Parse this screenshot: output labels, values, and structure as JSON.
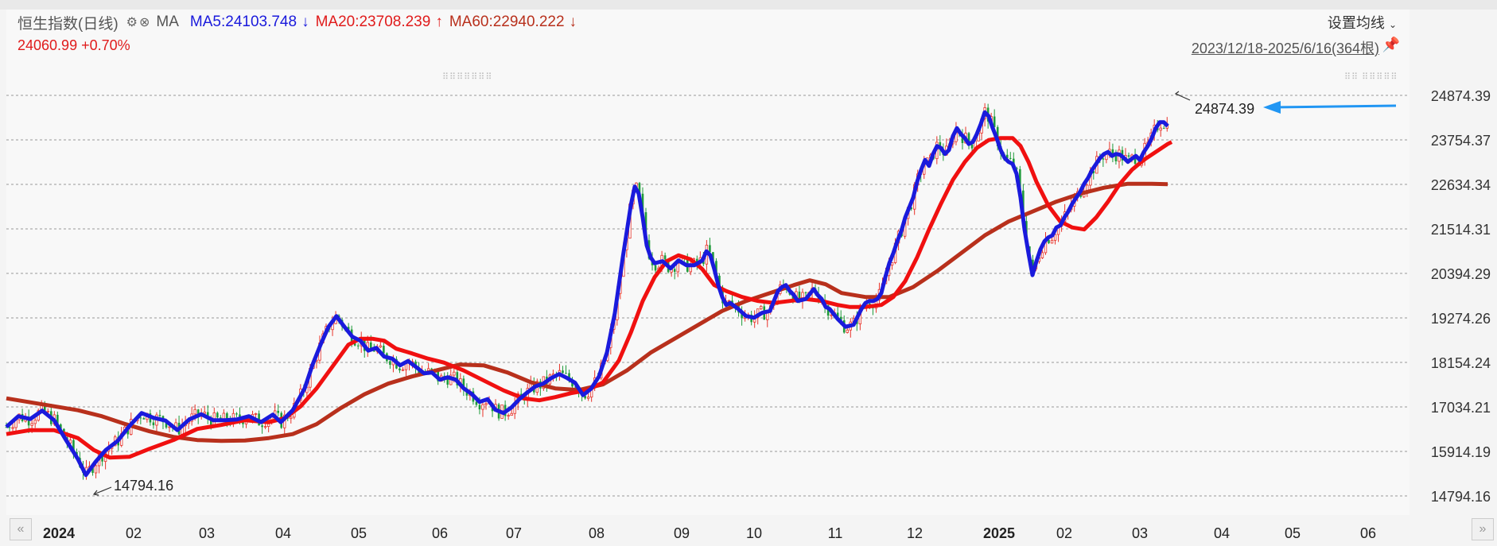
{
  "header": {
    "index_name": "恒生指数(日线)",
    "settings_icon": "gear-icon",
    "close_icon": "close-circle-icon",
    "indicator": "MA",
    "ma5": "MA5:24103.748",
    "ma5_arrow": "↓",
    "ma20": "MA20:23708.239",
    "ma20_arrow": "↑",
    "ma60": "MA60:22940.222",
    "ma60_arrow": "↓",
    "price_change": "24060.99 +0.70%",
    "set_ma_label": "设置均线",
    "date_range": "2023/12/18-2025/6/16(364根)",
    "pin_icon": "pin-icon"
  },
  "colors": {
    "ma5": "#1a1adc",
    "ma20": "#f01010",
    "ma60": "#b8301c",
    "up": "#e8332a",
    "down": "#1e9a3a",
    "arrow": "#2196f3"
  },
  "chart_data": {
    "type": "candlestick",
    "y_ticks": [
      "24874.39",
      "23754.37",
      "22634.34",
      "21514.31",
      "20394.29",
      "19274.26",
      "18154.24",
      "17034.21",
      "15914.19",
      "14794.16"
    ],
    "x_labels": [
      "2024",
      "02",
      "03",
      "04",
      "05",
      "06",
      "07",
      "08",
      "09",
      "10",
      "11",
      "12",
      "2025",
      "02",
      "03",
      "04",
      "05",
      "06"
    ],
    "ylim": [
      14794.16,
      24874.39
    ],
    "annotations": [
      {
        "label": "24874.39",
        "type": "max"
      },
      {
        "label": "14794.16",
        "type": "min"
      }
    ],
    "ma5": [
      [
        0,
        16530
      ],
      [
        15,
        16800
      ],
      [
        30,
        16730
      ],
      [
        45,
        16940
      ],
      [
        60,
        16700
      ],
      [
        75,
        16200
      ],
      [
        90,
        15720
      ],
      [
        100,
        15320
      ],
      [
        112,
        15650
      ],
      [
        125,
        15950
      ],
      [
        140,
        16180
      ],
      [
        155,
        16560
      ],
      [
        170,
        16880
      ],
      [
        185,
        16760
      ],
      [
        200,
        16690
      ],
      [
        215,
        16450
      ],
      [
        230,
        16720
      ],
      [
        245,
        16850
      ],
      [
        260,
        16700
      ],
      [
        275,
        16700
      ],
      [
        290,
        16720
      ],
      [
        305,
        16800
      ],
      [
        320,
        16650
      ],
      [
        335,
        16840
      ],
      [
        345,
        16650
      ],
      [
        360,
        16950
      ],
      [
        375,
        17500
      ],
      [
        385,
        18100
      ],
      [
        395,
        18600
      ],
      [
        405,
        19050
      ],
      [
        415,
        19320
      ],
      [
        425,
        19050
      ],
      [
        435,
        18800
      ],
      [
        445,
        18700
      ],
      [
        455,
        18450
      ],
      [
        465,
        18520
      ],
      [
        475,
        18300
      ],
      [
        485,
        18250
      ],
      [
        495,
        18080
      ],
      [
        505,
        18190
      ],
      [
        515,
        18040
      ],
      [
        525,
        17880
      ],
      [
        535,
        17900
      ],
      [
        545,
        17720
      ],
      [
        555,
        17780
      ],
      [
        565,
        17720
      ],
      [
        575,
        17500
      ],
      [
        585,
        17360
      ],
      [
        595,
        17160
      ],
      [
        605,
        17230
      ],
      [
        615,
        16960
      ],
      [
        625,
        16880
      ],
      [
        635,
        17020
      ],
      [
        645,
        17230
      ],
      [
        655,
        17400
      ],
      [
        665,
        17550
      ],
      [
        675,
        17620
      ],
      [
        685,
        17760
      ],
      [
        695,
        17860
      ],
      [
        705,
        17760
      ],
      [
        715,
        17640
      ],
      [
        725,
        17330
      ],
      [
        735,
        17490
      ],
      [
        745,
        17800
      ],
      [
        755,
        18400
      ],
      [
        765,
        19400
      ],
      [
        775,
        20800
      ],
      [
        785,
        22100
      ],
      [
        790,
        22580
      ],
      [
        795,
        22400
      ],
      [
        800,
        21800
      ],
      [
        805,
        21100
      ],
      [
        810,
        20800
      ],
      [
        815,
        20650
      ],
      [
        825,
        20700
      ],
      [
        835,
        20520
      ],
      [
        845,
        20720
      ],
      [
        855,
        20600
      ],
      [
        865,
        20600
      ],
      [
        875,
        20720
      ],
      [
        880,
        20950
      ],
      [
        885,
        20850
      ],
      [
        890,
        20500
      ],
      [
        895,
        20100
      ],
      [
        900,
        19800
      ],
      [
        905,
        19600
      ],
      [
        910,
        19650
      ],
      [
        920,
        19500
      ],
      [
        930,
        19320
      ],
      [
        940,
        19280
      ],
      [
        950,
        19400
      ],
      [
        960,
        19450
      ],
      [
        965,
        19700
      ],
      [
        970,
        19950
      ],
      [
        975,
        20050
      ],
      [
        980,
        20100
      ],
      [
        985,
        19950
      ],
      [
        990,
        19850
      ],
      [
        995,
        19700
      ],
      [
        1005,
        19750
      ],
      [
        1015,
        20000
      ],
      [
        1020,
        19850
      ],
      [
        1025,
        19750
      ],
      [
        1030,
        19550
      ],
      [
        1035,
        19500
      ],
      [
        1045,
        19250
      ],
      [
        1055,
        19050
      ],
      [
        1065,
        19100
      ],
      [
        1070,
        19300
      ],
      [
        1075,
        19500
      ],
      [
        1080,
        19650
      ],
      [
        1085,
        19700
      ],
      [
        1090,
        19700
      ],
      [
        1095,
        19750
      ],
      [
        1100,
        19900
      ],
      [
        1105,
        20300
      ],
      [
        1110,
        20650
      ],
      [
        1115,
        20900
      ],
      [
        1120,
        21200
      ],
      [
        1125,
        21450
      ],
      [
        1130,
        21800
      ],
      [
        1135,
        22050
      ],
      [
        1140,
        22300
      ],
      [
        1145,
        22700
      ],
      [
        1150,
        23000
      ],
      [
        1155,
        23250
      ],
      [
        1160,
        23100
      ],
      [
        1165,
        23400
      ],
      [
        1170,
        23600
      ],
      [
        1175,
        23550
      ],
      [
        1180,
        23400
      ],
      [
        1185,
        23500
      ],
      [
        1190,
        23850
      ],
      [
        1195,
        24050
      ],
      [
        1200,
        23900
      ],
      [
        1205,
        23800
      ],
      [
        1210,
        23650
      ],
      [
        1215,
        23700
      ],
      [
        1220,
        23900
      ],
      [
        1225,
        24150
      ],
      [
        1230,
        24450
      ],
      [
        1235,
        24350
      ],
      [
        1240,
        24050
      ],
      [
        1245,
        23800
      ],
      [
        1250,
        23500
      ],
      [
        1255,
        23300
      ],
      [
        1260,
        23200
      ],
      [
        1265,
        23150
      ],
      [
        1270,
        22900
      ],
      [
        1275,
        22300
      ],
      [
        1280,
        21500
      ],
      [
        1285,
        20900
      ],
      [
        1290,
        20350
      ],
      [
        1295,
        20700
      ],
      [
        1300,
        21000
      ],
      [
        1305,
        21200
      ],
      [
        1310,
        21300
      ],
      [
        1315,
        21350
      ],
      [
        1320,
        21550
      ],
      [
        1325,
        21600
      ],
      [
        1330,
        21800
      ],
      [
        1335,
        21950
      ],
      [
        1340,
        22150
      ],
      [
        1345,
        22300
      ],
      [
        1350,
        22450
      ],
      [
        1355,
        22650
      ],
      [
        1360,
        22800
      ],
      [
        1365,
        23000
      ],
      [
        1370,
        23150
      ],
      [
        1375,
        23300
      ],
      [
        1380,
        23400
      ],
      [
        1385,
        23450
      ],
      [
        1390,
        23350
      ],
      [
        1395,
        23400
      ],
      [
        1400,
        23380
      ],
      [
        1405,
        23300
      ],
      [
        1410,
        23200
      ],
      [
        1415,
        23280
      ],
      [
        1420,
        23350
      ],
      [
        1425,
        23250
      ],
      [
        1430,
        23450
      ],
      [
        1435,
        23600
      ],
      [
        1440,
        23800
      ],
      [
        1445,
        24050
      ],
      [
        1450,
        24200
      ],
      [
        1455,
        24200
      ],
      [
        1460,
        24100
      ]
    ],
    "ma20": [
      [
        0,
        16350
      ],
      [
        30,
        16450
      ],
      [
        60,
        16450
      ],
      [
        90,
        16250
      ],
      [
        110,
        15950
      ],
      [
        130,
        15760
      ],
      [
        155,
        15780
      ],
      [
        180,
        15980
      ],
      [
        210,
        16200
      ],
      [
        240,
        16480
      ],
      [
        270,
        16580
      ],
      [
        300,
        16700
      ],
      [
        330,
        16650
      ],
      [
        350,
        16750
      ],
      [
        370,
        17050
      ],
      [
        390,
        17500
      ],
      [
        410,
        18050
      ],
      [
        430,
        18600
      ],
      [
        445,
        18750
      ],
      [
        460,
        18750
      ],
      [
        475,
        18700
      ],
      [
        490,
        18500
      ],
      [
        510,
        18380
      ],
      [
        530,
        18250
      ],
      [
        550,
        18150
      ],
      [
        575,
        17950
      ],
      [
        600,
        17700
      ],
      [
        625,
        17450
      ],
      [
        650,
        17250
      ],
      [
        670,
        17200
      ],
      [
        690,
        17280
      ],
      [
        710,
        17380
      ],
      [
        730,
        17450
      ],
      [
        750,
        17650
      ],
      [
        770,
        18200
      ],
      [
        785,
        18900
      ],
      [
        800,
        19700
      ],
      [
        815,
        20300
      ],
      [
        830,
        20700
      ],
      [
        845,
        20850
      ],
      [
        860,
        20750
      ],
      [
        875,
        20500
      ],
      [
        890,
        20100
      ],
      [
        905,
        19950
      ],
      [
        925,
        19800
      ],
      [
        945,
        19700
      ],
      [
        965,
        19650
      ],
      [
        985,
        19700
      ],
      [
        1005,
        19750
      ],
      [
        1025,
        19700
      ],
      [
        1045,
        19600
      ],
      [
        1060,
        19550
      ],
      [
        1080,
        19550
      ],
      [
        1100,
        19600
      ],
      [
        1115,
        19800
      ],
      [
        1130,
        20200
      ],
      [
        1145,
        20800
      ],
      [
        1160,
        21500
      ],
      [
        1175,
        22150
      ],
      [
        1190,
        22750
      ],
      [
        1205,
        23200
      ],
      [
        1220,
        23550
      ],
      [
        1235,
        23750
      ],
      [
        1250,
        23800
      ],
      [
        1265,
        23800
      ],
      [
        1275,
        23600
      ],
      [
        1285,
        23200
      ],
      [
        1295,
        22700
      ],
      [
        1310,
        22100
      ],
      [
        1325,
        21700
      ],
      [
        1340,
        21550
      ],
      [
        1355,
        21500
      ],
      [
        1370,
        21800
      ],
      [
        1385,
        22200
      ],
      [
        1400,
        22650
      ],
      [
        1415,
        23000
      ],
      [
        1430,
        23250
      ],
      [
        1445,
        23450
      ],
      [
        1460,
        23650
      ],
      [
        1465,
        23700
      ]
    ],
    "ma60": [
      [
        0,
        17250
      ],
      [
        30,
        17150
      ],
      [
        60,
        17050
      ],
      [
        90,
        16950
      ],
      [
        120,
        16800
      ],
      [
        150,
        16600
      ],
      [
        180,
        16420
      ],
      [
        210,
        16280
      ],
      [
        240,
        16200
      ],
      [
        270,
        16180
      ],
      [
        300,
        16190
      ],
      [
        330,
        16250
      ],
      [
        360,
        16350
      ],
      [
        390,
        16600
      ],
      [
        420,
        17000
      ],
      [
        450,
        17350
      ],
      [
        480,
        17620
      ],
      [
        510,
        17800
      ],
      [
        540,
        17950
      ],
      [
        570,
        18100
      ],
      [
        600,
        18080
      ],
      [
        630,
        17900
      ],
      [
        660,
        17650
      ],
      [
        690,
        17500
      ],
      [
        720,
        17460
      ],
      [
        750,
        17600
      ],
      [
        780,
        17950
      ],
      [
        810,
        18400
      ],
      [
        840,
        18750
      ],
      [
        870,
        19100
      ],
      [
        900,
        19450
      ],
      [
        930,
        19700
      ],
      [
        960,
        19900
      ],
      [
        990,
        20100
      ],
      [
        1010,
        20220
      ],
      [
        1030,
        20120
      ],
      [
        1050,
        19900
      ],
      [
        1080,
        19800
      ],
      [
        1110,
        19800
      ],
      [
        1140,
        20050
      ],
      [
        1170,
        20450
      ],
      [
        1200,
        20900
      ],
      [
        1230,
        21350
      ],
      [
        1260,
        21700
      ],
      [
        1290,
        21950
      ],
      [
        1320,
        22200
      ],
      [
        1350,
        22400
      ],
      [
        1380,
        22550
      ],
      [
        1410,
        22650
      ],
      [
        1440,
        22650
      ],
      [
        1460,
        22640
      ]
    ]
  }
}
